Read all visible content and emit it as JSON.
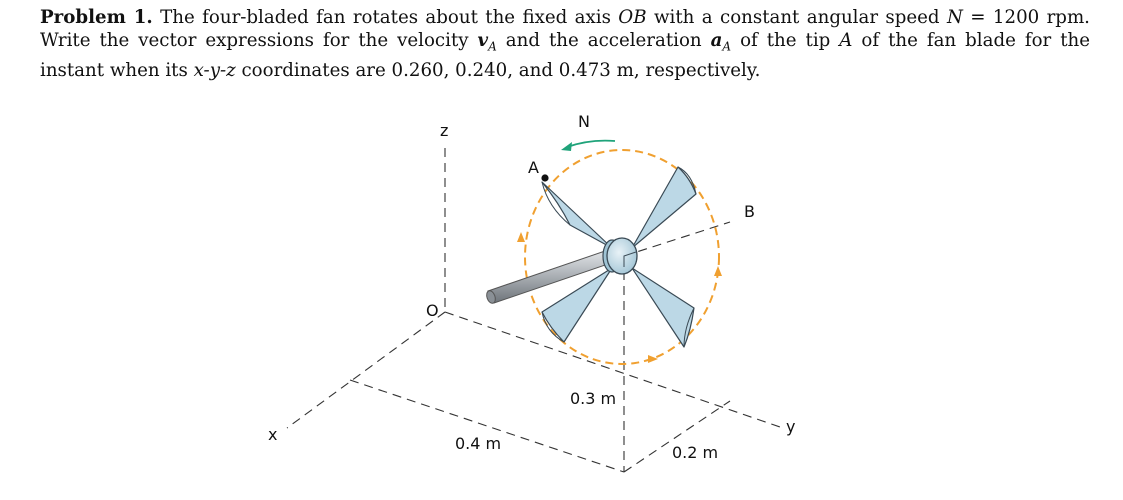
{
  "problem": {
    "label": "Problem 1.",
    "line1_a": "The four-bladed fan rotates about the fixed axis ",
    "axis_name": "OB",
    "line1_b": " with a constant angular speed ",
    "speed_symbol": "N",
    "equals": " = ",
    "speed_value": "1200 rpm.",
    "line2_a": " Write the vector expressions for the velocity ",
    "v_symbol": "v",
    "v_sub": "A",
    "line2_b": " and the acceleration ",
    "a_symbol": "a",
    "a_sub": "A",
    "line2_c": " of the tip ",
    "tip_symbol": "A",
    "line2_d": " of the fan blade for the instant when its ",
    "coords_symbol": "x-y-z",
    "line3": " coordinates are 0.260, 0.240, and 0.473 m, respectively."
  },
  "diagram": {
    "labels": {
      "z": "z",
      "y": "y",
      "x": "x",
      "o": "O",
      "b": "B",
      "a": "A",
      "n": "N",
      "dim_03": "0.3 m",
      "dim_04": "0.4 m",
      "dim_02": "0.2 m"
    },
    "colors": {
      "orbit": "#f0a030",
      "rotation_arrow": "#1fa37a",
      "blade_fill": "#bcd8e6",
      "blade_stroke": "#3a4a55",
      "shaft": "#a9aeb3"
    }
  }
}
